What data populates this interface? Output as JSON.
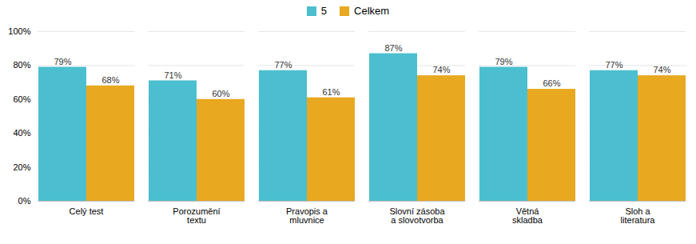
{
  "chart_data": {
    "type": "bar",
    "categories": [
      "Celý test",
      "Porozumění\ntextu",
      "Pravopis a\nmluvnice",
      "Slovní zásoba\na slovotvorba",
      "Větná\nskladba",
      "Sloh a\nliteratura"
    ],
    "series": [
      {
        "name": "5",
        "color": "#4BBFCF",
        "values": [
          79,
          71,
          77,
          87,
          79,
          77
        ],
        "value_labels": [
          "79%",
          "71%",
          "77%",
          "87%",
          "79%",
          "77%"
        ]
      },
      {
        "name": "Celkem",
        "color": "#E8A820",
        "values": [
          68,
          60,
          61,
          74,
          66,
          74
        ],
        "value_labels": [
          "68%",
          "60%",
          "61%",
          "74%",
          "66%",
          "74%"
        ]
      }
    ],
    "ylim": [
      0,
      100
    ],
    "yticks": [
      {
        "value": 0,
        "label": "0%"
      },
      {
        "value": 20,
        "label": "20%"
      },
      {
        "value": 40,
        "label": "40%"
      },
      {
        "value": 60,
        "label": "60%"
      },
      {
        "value": 80,
        "label": "80%"
      },
      {
        "value": 100,
        "label": "100%"
      }
    ],
    "grid": true,
    "data_labels": true,
    "legend": "top"
  }
}
